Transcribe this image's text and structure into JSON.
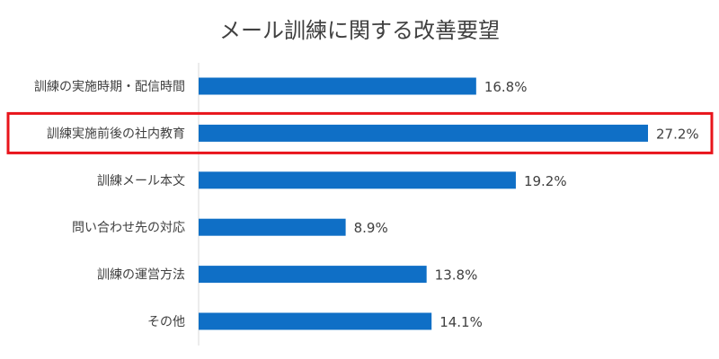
{
  "chart_data": {
    "type": "bar",
    "orientation": "horizontal",
    "title": "メール訓練に関する改善要望",
    "xlabel": "",
    "ylabel": "",
    "xlim": [
      0,
      30
    ],
    "grid": false,
    "value_suffix": "%",
    "bar_color": "#0F6FC6",
    "categories": [
      "訓練の実施時期・配信時間",
      "訓練実施前後の社内教育",
      "訓練メール本文",
      "問い合わせ先の対応",
      "訓練の運営方法",
      "その他"
    ],
    "values": [
      16.8,
      27.2,
      19.2,
      8.9,
      13.8,
      14.1
    ],
    "highlight": {
      "category": "訓練実施前後の社内教育",
      "color": "#E8141B"
    }
  }
}
